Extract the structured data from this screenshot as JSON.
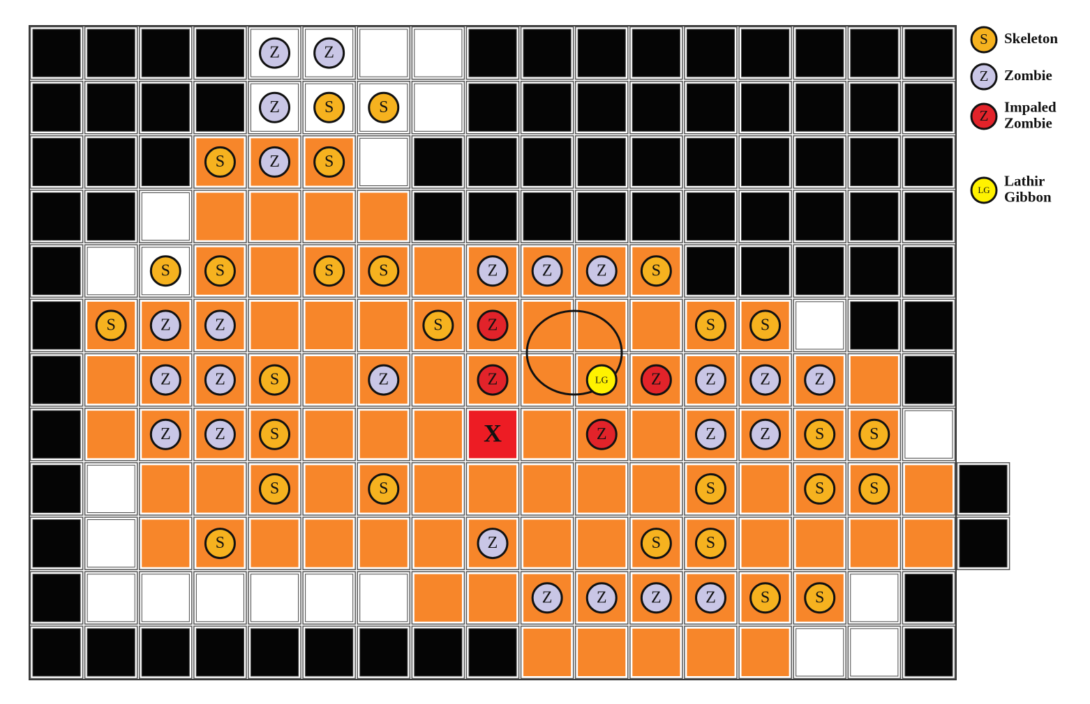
{
  "board": {
    "rows": [
      [
        null,
        null,
        null,
        null,
        {
          "label": "Z",
          "color": "#c9c6e6"
        },
        {
          "label": "Z",
          "color": "#c9c6e6"
        },
        null,
        null,
        null,
        null,
        null,
        null,
        null,
        null,
        null,
        null,
        null
      ],
      [
        null,
        null,
        null,
        null,
        {
          "label": "Z",
          "color": "#c9c6e6"
        },
        {
          "label": "S",
          "color": "#f6b21f"
        },
        {
          "label": "S",
          "color": "#f6b21f"
        },
        null,
        null,
        null,
        null,
        null,
        null,
        null,
        null,
        null,
        null
      ],
      [
        null,
        null,
        null,
        {
          "label": "S",
          "color": "#f6b21f"
        },
        {
          "label": "Z",
          "color": "#c9c6e6"
        },
        {
          "label": "S",
          "color": "#f6b21f"
        },
        null,
        null,
        null,
        null,
        null,
        null,
        null,
        null,
        null,
        null,
        null
      ],
      [
        null,
        null,
        null,
        null,
        null,
        null,
        null,
        null,
        null,
        null,
        null,
        null,
        null,
        null,
        null,
        null,
        null
      ],
      [
        null,
        null,
        {
          "label": "S",
          "color": "#f6b21f"
        },
        {
          "label": "S",
          "color": "#f6b21f"
        },
        null,
        {
          "label": "S",
          "color": "#f6b21f"
        },
        {
          "label": "S",
          "color": "#f6b21f"
        },
        null,
        {
          "label": "Z",
          "color": "#c9c6e6"
        },
        {
          "label": "Z",
          "color": "#c9c6e6"
        },
        {
          "label": "Z",
          "color": "#c9c6e6"
        },
        {
          "label": "S",
          "color": "#f6b21f"
        },
        null,
        null,
        null,
        null,
        null
      ],
      [
        null,
        {
          "label": "S",
          "color": "#f6b21f"
        },
        {
          "label": "Z",
          "color": "#c9c6e6"
        },
        {
          "label": "Z",
          "color": "#c9c6e6"
        },
        null,
        null,
        null,
        {
          "label": "S",
          "color": "#f6b21f"
        },
        {
          "label": "Z",
          "color": "#e2232a"
        },
        null,
        null,
        null,
        {
          "label": "S",
          "color": "#f6b21f"
        },
        {
          "label": "S",
          "color": "#f6b21f"
        },
        null,
        null,
        null
      ],
      [
        null,
        null,
        {
          "label": "Z",
          "color": "#c9c6e6"
        },
        {
          "label": "Z",
          "color": "#c9c6e6"
        },
        {
          "label": "S",
          "color": "#f6b21f"
        },
        null,
        {
          "label": "Z",
          "color": "#c9c6e6"
        },
        null,
        {
          "label": "Z",
          "color": "#e2232a"
        },
        null,
        {
          "label": "LG",
          "color": "#fff200"
        },
        {
          "label": "Z",
          "color": "#e2232a"
        },
        {
          "label": "Z",
          "color": "#c9c6e6"
        },
        {
          "label": "Z",
          "color": "#c9c6e6"
        },
        {
          "label": "Z",
          "color": "#c9c6e6"
        },
        null,
        null
      ],
      [
        null,
        null,
        {
          "label": "Z",
          "color": "#c9c6e6"
        },
        {
          "label": "Z",
          "color": "#c9c6e6"
        },
        {
          "label": "S",
          "color": "#f6b21f"
        },
        null,
        null,
        null,
        {
          "label": "X",
          "color": "#ed1c24",
          "shape": "square"
        },
        null,
        {
          "label": "Z",
          "color": "#e2232a"
        },
        null,
        {
          "label": "Z",
          "color": "#c9c6e6"
        },
        {
          "label": "Z",
          "color": "#c9c6e6"
        },
        {
          "label": "S",
          "color": "#f6b21f"
        },
        {
          "label": "S",
          "color": "#f6b21f"
        },
        null
      ],
      [
        null,
        null,
        null,
        null,
        {
          "label": "S",
          "color": "#f6b21f"
        },
        null,
        {
          "label": "S",
          "color": "#f6b21f"
        },
        null,
        null,
        null,
        null,
        null,
        {
          "label": "S",
          "color": "#f6b21f"
        },
        null,
        {
          "label": "S",
          "color": "#f6b21f"
        },
        {
          "label": "S",
          "color": "#f6b21f"
        },
        null
      ],
      [
        null,
        null,
        null,
        {
          "label": "S",
          "color": "#f6b21f"
        },
        null,
        null,
        null,
        null,
        {
          "label": "Z",
          "color": "#c9c6e6"
        },
        null,
        null,
        {
          "label": "S",
          "color": "#f6b21f"
        },
        {
          "label": "S",
          "color": "#f6b21f"
        },
        null,
        null,
        null,
        null
      ],
      [
        null,
        null,
        null,
        null,
        null,
        null,
        null,
        null,
        null,
        {
          "label": "Z",
          "color": "#c9c6e6"
        },
        {
          "label": "Z",
          "color": "#c9c6e6"
        },
        {
          "label": "Z",
          "color": "#c9c6e6"
        },
        {
          "label": "Z",
          "color": "#c9c6e6"
        },
        {
          "label": "S",
          "color": "#f6b21f"
        },
        {
          "label": "S",
          "color": "#f6b21f"
        },
        null,
        null
      ],
      [
        null,
        null,
        null,
        null,
        null,
        null,
        null,
        null,
        null,
        null,
        null,
        null,
        null,
        null,
        null,
        null,
        null
      ]
    ]
  },
  "legend": [
    {
      "icon": "S",
      "color": "#f6b21f",
      "lines": [
        "Skeleton"
      ]
    },
    {
      "icon": "Z",
      "color": "#c9c6e6",
      "lines": [
        "Zombie"
      ]
    },
    {
      "icon": "Z",
      "color": "#e2232a",
      "lines": [
        "Impaled",
        "Zombie"
      ]
    },
    {
      "icon": "LG",
      "color": "#fff200",
      "lines": [
        "Lathir",
        "Gibbon"
      ]
    }
  ]
}
